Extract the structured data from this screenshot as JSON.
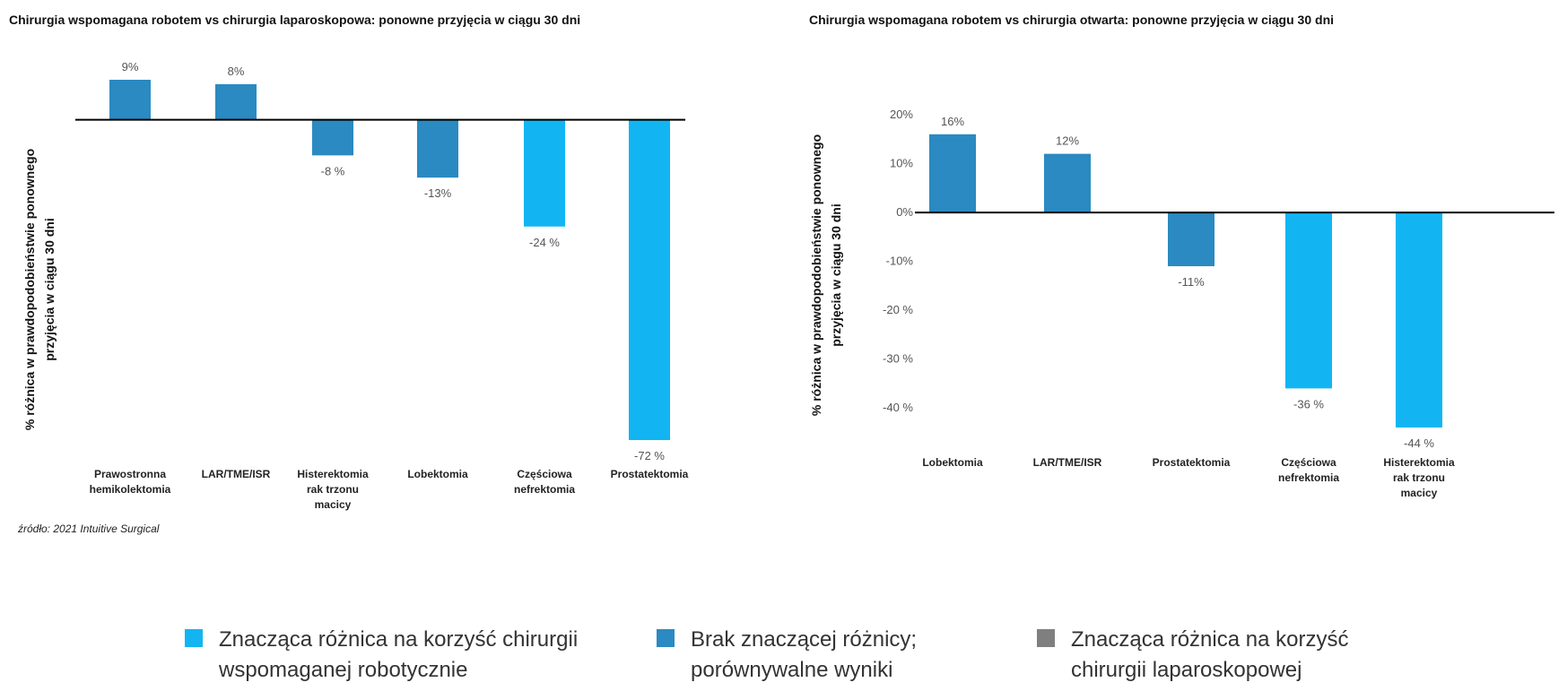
{
  "chart_data": [
    {
      "type": "bar",
      "title": "Chirurgia wspomagana robotem vs chirurgia laparoskopowa: ponowne przyjęcia w ciągu 30 dni",
      "ylabel_lines": [
        "% różnica w prawdopodobieństwie ponownego",
        "przyjęcia w ciągu 30 dni"
      ],
      "xlabel": "",
      "categories": [
        [
          "Prawostronna",
          "hemikolektomia"
        ],
        [
          "LAR/TME/ISR"
        ],
        [
          "Histerektomia",
          "rak trzonu",
          "macicy"
        ],
        [
          "Lobektomia"
        ],
        [
          "Częściowa",
          "nefrektomia"
        ],
        [
          "Prostatektomia"
        ]
      ],
      "values": [
        9,
        8,
        -8,
        -13,
        -24,
        -72
      ],
      "value_labels": [
        "9%",
        "8%",
        "-8 %",
        "-13%",
        "-24 %",
        "-72 %"
      ],
      "significance": [
        "none",
        "none",
        "none",
        "none",
        "robotic",
        "robotic"
      ],
      "ylim": [
        -72,
        9
      ],
      "yticks": []
    },
    {
      "type": "bar",
      "title": "Chirurgia wspomagana robotem vs chirurgia otwarta: ponowne przyjęcia w ciągu 30 dni",
      "ylabel_lines": [
        "% różnica w prawdopodobieństwie ponownego",
        "przyjęcia w ciągu 30 dni"
      ],
      "xlabel": "",
      "categories": [
        [
          "Lobektomia"
        ],
        [
          "LAR/TME/ISR"
        ],
        [
          "Prostatektomia"
        ],
        [
          "Częściowa",
          "nefrektomia"
        ],
        [
          "Histerektomia",
          "rak trzonu",
          "macicy"
        ]
      ],
      "values": [
        16,
        12,
        -11,
        -36,
        -44
      ],
      "value_labels": [
        "16%",
        "12%",
        "-11%",
        "-36 %",
        "-44 %"
      ],
      "significance": [
        "none",
        "none",
        "none",
        "robotic",
        "robotic"
      ],
      "ylim": [
        -44,
        20
      ],
      "yticks": [
        {
          "value": 20,
          "label": "20%"
        },
        {
          "value": 10,
          "label": "10%"
        },
        {
          "value": 0,
          "label": "0%"
        },
        {
          "value": -10,
          "label": "-10%"
        },
        {
          "value": -20,
          "label": "-20 %"
        },
        {
          "value": -30,
          "label": "-30 %"
        },
        {
          "value": -40,
          "label": "-40 %"
        }
      ]
    }
  ],
  "source": "źródło: 2021 Intuitive Surgical",
  "legend": [
    {
      "key": "robotic",
      "color": "#12B5F2",
      "lines": [
        "Znacząca różnica na korzyść chirurgii",
        "wspomaganej robotycznie"
      ]
    },
    {
      "key": "none",
      "color": "#2A8AC1",
      "lines": [
        "Brak znaczącej różnicy;",
        "porównywalne wyniki"
      ]
    },
    {
      "key": "laparoscopic",
      "color": "#7F7F7F",
      "lines": [
        "Znacząca różnica na korzyść",
        "chirurgii laparoskopowej"
      ]
    }
  ],
  "colors": {
    "axis": "#000000",
    "value_label": "#555555"
  }
}
